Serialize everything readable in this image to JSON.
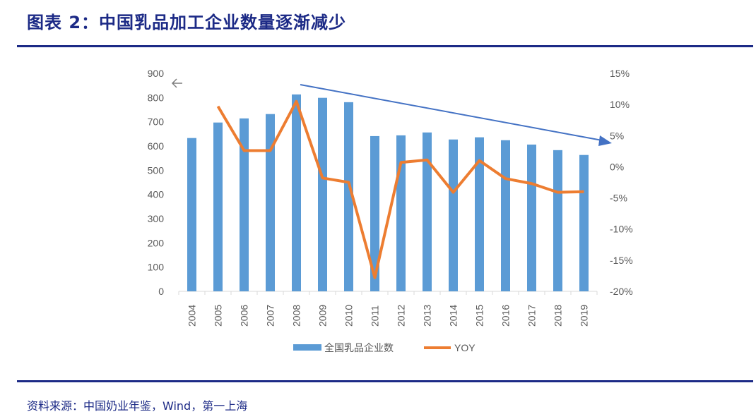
{
  "title": "图表 2：中国乳品加工企业数量逐渐减少",
  "source": "资料来源：中国奶业年鉴，Wind，第一上海",
  "colors": {
    "bar": "#5b9bd5",
    "line": "#ed7d31",
    "trend_arrow": "#4472c4",
    "rule": "#1c2a86"
  },
  "chart_data": {
    "type": "bar+line",
    "categories": [
      "2004",
      "2005",
      "2006",
      "2007",
      "2008",
      "2009",
      "2010",
      "2011",
      "2012",
      "2013",
      "2014",
      "2015",
      "2016",
      "2017",
      "2018",
      "2019"
    ],
    "series": [
      {
        "name": "全国乳品企业数",
        "type": "bar",
        "axis": "left",
        "values": [
          633,
          697,
          714,
          732,
          813,
          799,
          781,
          641,
          644,
          656,
          627,
          636,
          624,
          606,
          583,
          563
        ]
      },
      {
        "name": "YOY",
        "type": "line",
        "axis": "right",
        "values": [
          null,
          9.7,
          2.6,
          2.6,
          10.5,
          -1.8,
          -2.5,
          -17.8,
          0.7,
          1.1,
          -4.1,
          1.0,
          -1.9,
          -2.7,
          -4.1,
          -4.0
        ]
      }
    ],
    "left_axis": {
      "ylim": [
        0,
        900
      ],
      "ticks": [
        "0",
        "100",
        "200",
        "300",
        "400",
        "500",
        "600",
        "700",
        "800",
        "900"
      ]
    },
    "right_axis": {
      "ylim": [
        -20,
        15
      ],
      "unit": "%",
      "ticks": [
        "-20%",
        "-15%",
        "-10%",
        "-5%",
        "0%",
        "5%",
        "10%",
        "15%"
      ]
    },
    "annotations": [
      "downward trend arrow from 2008 to 2019",
      "left-arrow glyph near left axis top"
    ],
    "legend": "bottom",
    "grid": false
  }
}
